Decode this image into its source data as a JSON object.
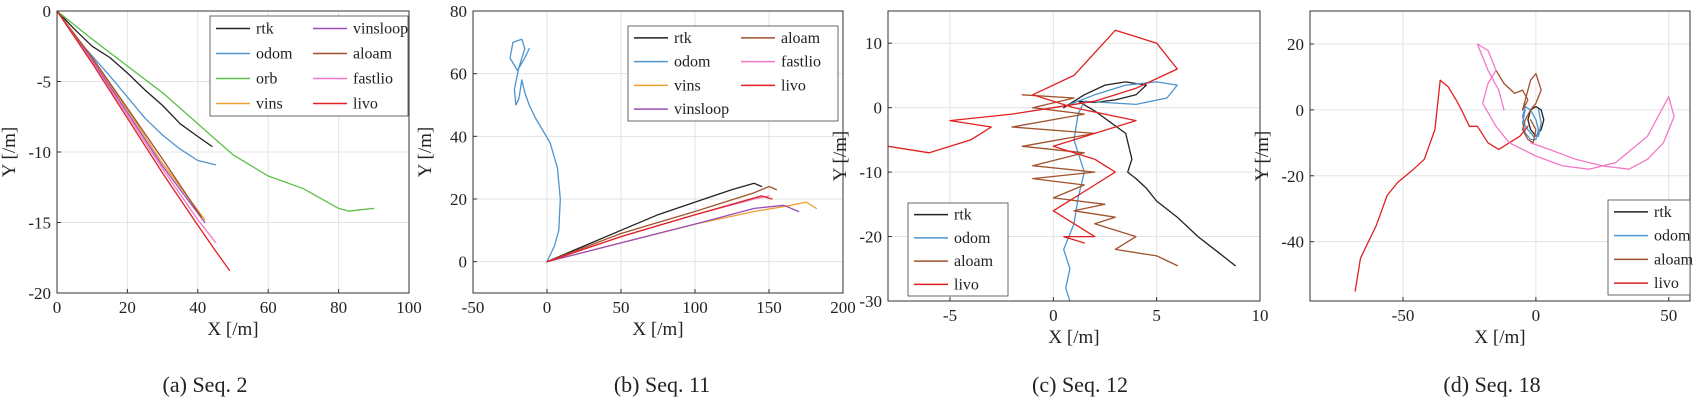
{
  "colors": {
    "rtk": "#222222",
    "odom": "#4f94cd",
    "orb": "#5cbf4a",
    "vins": "#f0a030",
    "vinsloop": "#9b4fb6",
    "aloam": "#a0522d",
    "fastlio": "#f279c6",
    "livo": "#e02020"
  },
  "chart_data": [
    {
      "type": "line",
      "caption": "(a) Seq. 2",
      "xlabel": "X [/m]",
      "ylabel": "Y [/m]",
      "xlim": [
        0,
        100
      ],
      "ylim": [
        -20,
        0
      ],
      "xticks": [
        0,
        20,
        40,
        60,
        80,
        100
      ],
      "yticks": [
        0,
        -5,
        -10,
        -15,
        -20
      ],
      "grid": true,
      "legend_position": "top-right",
      "legend_columns": 2,
      "legend": [
        "rtk",
        "odom",
        "orb",
        "vins",
        "vinsloop",
        "aloam",
        "fastlio",
        "livo"
      ],
      "series": [
        {
          "name": "rtk",
          "x": [
            0,
            5,
            10,
            15,
            20,
            25,
            30,
            35,
            40,
            44
          ],
          "y": [
            0,
            -1.3,
            -2.5,
            -3.3,
            -4.4,
            -5.6,
            -6.7,
            -8.0,
            -8.9,
            -9.6
          ]
        },
        {
          "name": "odom",
          "x": [
            0,
            5,
            10,
            15,
            20,
            25,
            30,
            35,
            40,
            45
          ],
          "y": [
            0,
            -1.8,
            -3.2,
            -4.6,
            -6.1,
            -7.6,
            -8.8,
            -9.8,
            -10.6,
            -10.9
          ]
        },
        {
          "name": "orb",
          "x": [
            0,
            10,
            20,
            30,
            40,
            50,
            60,
            70,
            80,
            83,
            86,
            90
          ],
          "y": [
            0,
            -2.0,
            -3.9,
            -5.8,
            -8.0,
            -10.2,
            -11.7,
            -12.6,
            -14.0,
            -14.2,
            -14.1,
            -14.0
          ]
        },
        {
          "name": "vins",
          "x": [
            0,
            10,
            20,
            30,
            42
          ],
          "y": [
            0,
            -3.4,
            -7.0,
            -10.8,
            -14.8
          ]
        },
        {
          "name": "vinsloop",
          "x": [
            0,
            10,
            20,
            30,
            42
          ],
          "y": [
            0,
            -3.5,
            -7.2,
            -11.0,
            -15.0
          ]
        },
        {
          "name": "aloam",
          "x": [
            0,
            10,
            20,
            30,
            41
          ],
          "y": [
            0,
            -3.3,
            -6.9,
            -10.5,
            -14.6
          ]
        },
        {
          "name": "fastlio",
          "x": [
            0,
            10,
            20,
            30,
            40,
            45
          ],
          "y": [
            0,
            -3.6,
            -7.4,
            -11.2,
            -14.8,
            -16.4
          ]
        },
        {
          "name": "livo",
          "x": [
            0,
            10,
            20,
            30,
            40,
            45,
            49
          ],
          "y": [
            0,
            -3.7,
            -7.6,
            -11.5,
            -15.2,
            -17.0,
            -18.4
          ]
        }
      ]
    },
    {
      "type": "line",
      "caption": "(b) Seq. 11",
      "xlabel": "X [/m]",
      "ylabel": "Y [/m]",
      "xlim": [
        -50,
        200
      ],
      "ylim": [
        -10,
        80
      ],
      "xticks": [
        -50,
        0,
        50,
        100,
        150,
        200
      ],
      "yticks": [
        0,
        20,
        40,
        60,
        80
      ],
      "grid": true,
      "legend_position": "top-right",
      "legend_columns": 2,
      "legend": [
        "rtk",
        "odom",
        "vins",
        "vinsloop",
        "aloam",
        "fastlio",
        "livo"
      ],
      "series": [
        {
          "name": "rtk",
          "x": [
            0,
            25,
            50,
            75,
            100,
            125,
            140,
            145
          ],
          "y": [
            0,
            5,
            10,
            15,
            19,
            23,
            25,
            24
          ]
        },
        {
          "name": "odom",
          "x": [
            0,
            5,
            8,
            9,
            7,
            2,
            -3,
            -8,
            -12,
            -15,
            -17,
            -19,
            -21,
            -22,
            -19,
            -15,
            -17,
            -23,
            -25,
            -20,
            -15,
            -12
          ],
          "y": [
            0,
            5,
            10,
            20,
            30,
            38,
            42,
            46,
            50,
            54,
            58,
            52,
            50,
            55,
            62,
            68,
            71,
            70,
            65,
            61,
            65,
            68
          ]
        },
        {
          "name": "vins",
          "x": [
            0,
            50,
            100,
            140,
            165,
            175,
            182
          ],
          "y": [
            0,
            6,
            12,
            16,
            18,
            19,
            17
          ]
        },
        {
          "name": "vinsloop",
          "x": [
            0,
            50,
            100,
            140,
            160,
            170
          ],
          "y": [
            0,
            6,
            12,
            17,
            18,
            16
          ]
        },
        {
          "name": "aloam",
          "x": [
            0,
            50,
            100,
            140,
            150,
            155
          ],
          "y": [
            0,
            9,
            16,
            22,
            24,
            23
          ]
        },
        {
          "name": "fastlio",
          "x": [
            0,
            50,
            100,
            140,
            150
          ],
          "y": [
            0,
            8,
            15,
            20,
            21
          ]
        },
        {
          "name": "livo",
          "x": [
            0,
            50,
            100,
            145,
            152
          ],
          "y": [
            0,
            8,
            15,
            21,
            20
          ]
        }
      ]
    },
    {
      "type": "line",
      "caption": "(c) Seq. 12",
      "xlabel": "X [/m]",
      "ylabel": "Y [/m]",
      "xlim": [
        -8,
        10
      ],
      "ylim": [
        -30,
        15
      ],
      "xticks": [
        -5,
        0,
        5,
        10
      ],
      "yticks": [
        10,
        0,
        -10,
        -20,
        -30
      ],
      "grid": true,
      "legend_position": "bottom-left",
      "legend_columns": 1,
      "legend": [
        "rtk",
        "odom",
        "aloam",
        "livo"
      ],
      "series": [
        {
          "name": "rtk",
          "x": [
            0.5,
            1.5,
            2.5,
            3.5,
            4.5,
            4.0,
            3.0,
            2.0,
            1.2,
            2.0,
            3.5,
            3.8,
            3.6,
            4.0,
            4.5,
            5.0,
            6.0,
            7.0,
            8.0,
            8.8
          ],
          "y": [
            0,
            2.0,
            3.5,
            4.0,
            3.5,
            2.0,
            1.2,
            0.8,
            1.0,
            -0.5,
            -4.0,
            -8.0,
            -10.0,
            -11.0,
            -12.5,
            -14.5,
            -17.0,
            -20.0,
            -22.5,
            -24.5
          ]
        },
        {
          "name": "odom",
          "x": [
            0.8,
            2.0,
            3.5,
            5.0,
            6.0,
            5.5,
            4.0,
            2.5,
            1.5,
            1.2,
            1.0,
            1.5,
            1.2,
            1.0,
            0.5,
            0.8,
            0.6,
            0.8
          ],
          "y": [
            0.5,
            2.0,
            3.5,
            4.0,
            3.5,
            1.5,
            0.5,
            0.8,
            1.0,
            -1.0,
            -5.0,
            -10.0,
            -14.0,
            -18.0,
            -22.0,
            -25.0,
            -28.0,
            -30.0
          ]
        },
        {
          "name": "aloam",
          "x": [
            -1.5,
            1.0,
            -1.0,
            1.5,
            -2.0,
            2.0,
            -1.5,
            1.5,
            -1.0,
            2.0,
            -1.0,
            1.5,
            0.0,
            2.5,
            1.0,
            3.0,
            2.0,
            4.0,
            3.0,
            5.0,
            6.0
          ],
          "y": [
            2.0,
            1.5,
            0.0,
            -1.0,
            -3.0,
            -4.0,
            -6.0,
            -7.0,
            -9.0,
            -10.0,
            -11.0,
            -12.0,
            -14.0,
            -15.0,
            -16.0,
            -17.0,
            -18.0,
            -20.0,
            -22.0,
            -23.0,
            -24.5
          ]
        },
        {
          "name": "livo",
          "x": [
            -8.0,
            -6.0,
            -4.0,
            -3.0,
            -5.0,
            -2.0,
            0.0,
            2.0,
            4.0,
            6.0,
            5.0,
            3.0,
            1.0,
            -1.0,
            1.0,
            4.0,
            2.0,
            0.0,
            2.0,
            3.0,
            2.0,
            1.0,
            0.0,
            1.0,
            2.0,
            0.5,
            1.5
          ],
          "y": [
            -6.0,
            -7.0,
            -5.0,
            -3.0,
            -2.0,
            -1.0,
            0.0,
            1.0,
            3.0,
            6.0,
            10.0,
            12.0,
            5.0,
            2.0,
            0.0,
            -2.0,
            -4.0,
            -6.0,
            -8.0,
            -10.0,
            -12.0,
            -14.0,
            -16.0,
            -18.0,
            -20.0,
            -20.0,
            -21.0
          ]
        }
      ]
    },
    {
      "type": "line",
      "caption": "(d) Seq. 18",
      "xlabel": "X [/m]",
      "ylabel": "Y [/m]",
      "xlim": [
        -85,
        58
      ],
      "ylim": [
        -58,
        30
      ],
      "xticks": [
        -50,
        0,
        50
      ],
      "yticks": [
        20,
        0,
        -20,
        -40
      ],
      "grid": true,
      "legend_position": "bottom-right",
      "legend_columns": 1,
      "legend": [
        "rtk",
        "odom",
        "aloam",
        "livo"
      ],
      "series": [
        {
          "name": "rtk",
          "x": [
            -2,
            -3,
            -2,
            0,
            2,
            3,
            2,
            0,
            -2
          ],
          "y": [
            0,
            -3,
            -6,
            -8,
            -6,
            -3,
            0,
            1,
            0
          ]
        },
        {
          "name": "odom",
          "x": [
            -4,
            -5,
            -4,
            -2,
            0,
            1,
            0,
            -2,
            -4,
            -5,
            -4,
            -1,
            1,
            2,
            1
          ],
          "y": [
            0,
            -4,
            -7,
            -9,
            -9,
            -6,
            -3,
            0,
            1,
            -2,
            -5,
            -8,
            -8,
            -4,
            0
          ]
        },
        {
          "name": "aloam",
          "x": [
            -15,
            -12,
            -8,
            -5,
            -3,
            -5,
            -2,
            0,
            2,
            0,
            -2,
            -4,
            -5,
            -3,
            -1,
            0,
            -2
          ],
          "y": [
            12,
            8,
            5,
            6,
            3,
            0,
            9,
            11,
            6,
            2,
            0,
            -3,
            -6,
            -9,
            -10,
            -6,
            -3
          ]
        },
        {
          "name": "livo",
          "x": [
            -68,
            -66,
            -60,
            -56,
            -52,
            -46,
            -42,
            -38,
            -36,
            -33,
            -30,
            -28,
            -25,
            -22,
            -18,
            -14,
            -10,
            -6,
            -3
          ],
          "y": [
            -55,
            -45,
            -35,
            -26,
            -22,
            -18,
            -15,
            -6,
            9,
            7,
            3,
            0,
            -5,
            -5,
            -10,
            -12,
            -10,
            -8,
            -5
          ]
        },
        {
          "name": "fastlio",
          "x": [
            -2,
            5,
            15,
            25,
            35,
            42,
            48,
            52,
            50,
            42,
            30,
            20,
            10,
            0,
            -10,
            -15,
            -20,
            -18,
            -15,
            -18,
            -22,
            -18,
            -14,
            -12
          ],
          "y": [
            -10,
            -12,
            -15,
            -17,
            -18,
            -15,
            -10,
            -2,
            4,
            -8,
            -16,
            -18,
            -17,
            -14,
            -10,
            -5,
            2,
            8,
            12,
            18,
            20,
            12,
            6,
            0
          ]
        }
      ]
    }
  ]
}
